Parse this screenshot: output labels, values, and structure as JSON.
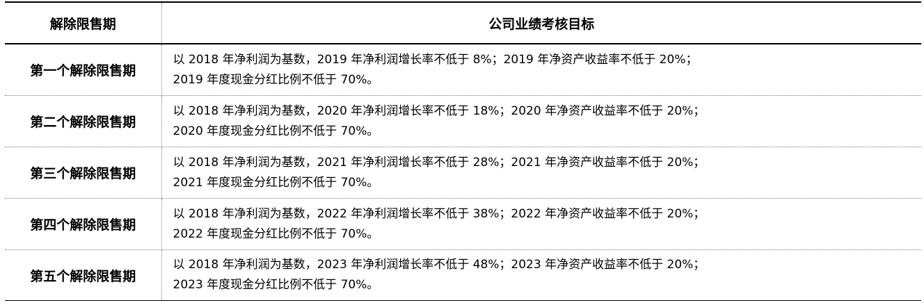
{
  "table": {
    "headers": {
      "period": "解除限售期",
      "target": "公司业绩考核目标"
    },
    "rows": [
      {
        "period": "第一个解除限售期",
        "target_line1": "以 2018 年净利润为基数，2019 年净利润增长率不低于 8%；2019 年净资产收益率不低于 20%；",
        "target_line2": "2019 年度现金分红比例不低于 70%。"
      },
      {
        "period": "第二个解除限售期",
        "target_line1": "以 2018 年净利润为基数，2020 年净利润增长率不低于 18%；2020 年净资产收益率不低于 20%；",
        "target_line2": "2020 年度现金分红比例不低于 70%。"
      },
      {
        "period": "第三个解除限售期",
        "target_line1": "以 2018 年净利润为基数，2021 年净利润增长率不低于 28%；2021 年净资产收益率不低于 20%；",
        "target_line2": "2021 年度现金分红比例不低于 70%。"
      },
      {
        "period": "第四个解除限售期",
        "target_line1": "以 2018 年净利润为基数，2022 年净利润增长率不低于 38%；2022 年净资产收益率不低于 20%；",
        "target_line2": "2022 年度现金分红比例不低于 70%。"
      },
      {
        "period": "第五个解除限售期",
        "target_line1": "以 2018 年净利润为基数，2023 年净利润增长率不低于 48%；2023 年净资产收益率不低于 20%；",
        "target_line2": "2023 年度现金分红比例不低于 70%。"
      }
    ]
  }
}
